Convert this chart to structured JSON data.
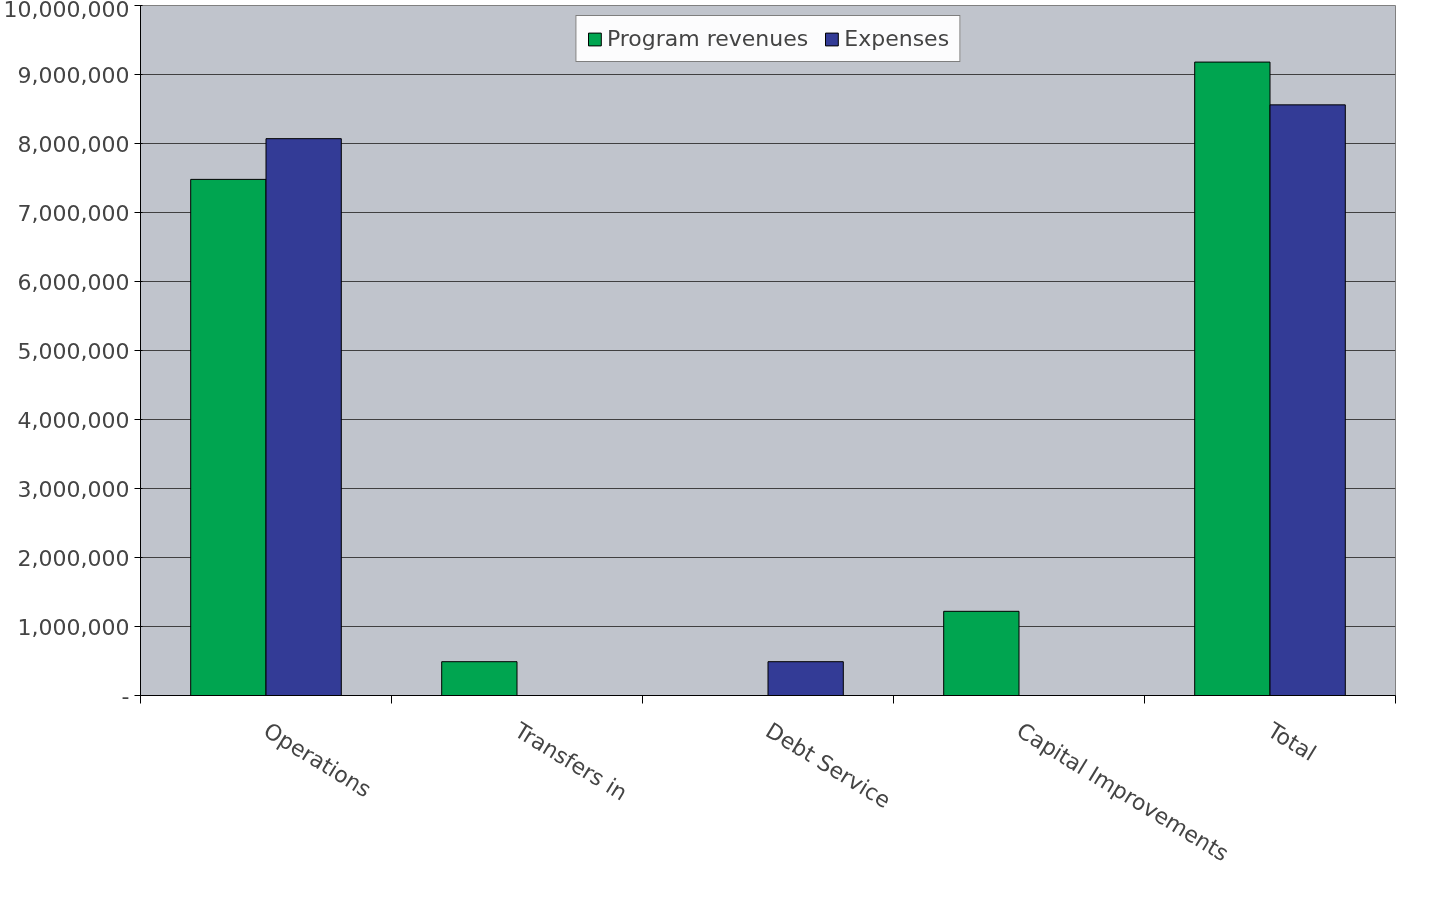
{
  "chart_data": {
    "type": "bar",
    "categories": [
      "Operations",
      "Transfers in",
      "Debt Service",
      "Capital Improvements",
      "Total"
    ],
    "series": [
      {
        "name": "Program revenues",
        "color": "#00a550",
        "values": [
          7480000,
          490000,
          null,
          1220000,
          9180000
        ]
      },
      {
        "name": "Expenses",
        "color": "#333b96",
        "values": [
          8070000,
          null,
          490000,
          null,
          8560000
        ]
      }
    ],
    "ylim": [
      0,
      10000000
    ],
    "yticks": [
      {
        "value": 0,
        "label": "-"
      },
      {
        "value": 1000000,
        "label": "1,000,000"
      },
      {
        "value": 2000000,
        "label": "2,000,000"
      },
      {
        "value": 3000000,
        "label": "3,000,000"
      },
      {
        "value": 4000000,
        "label": "4,000,000"
      },
      {
        "value": 5000000,
        "label": "5,000,000"
      },
      {
        "value": 6000000,
        "label": "6,000,000"
      },
      {
        "value": 7000000,
        "label": "7,000,000"
      },
      {
        "value": 8000000,
        "label": "8,000,000"
      },
      {
        "value": 9000000,
        "label": "9,000,000"
      },
      {
        "value": 10000000,
        "label": "10,000,000"
      }
    ],
    "grid": "y",
    "legend": "top"
  }
}
